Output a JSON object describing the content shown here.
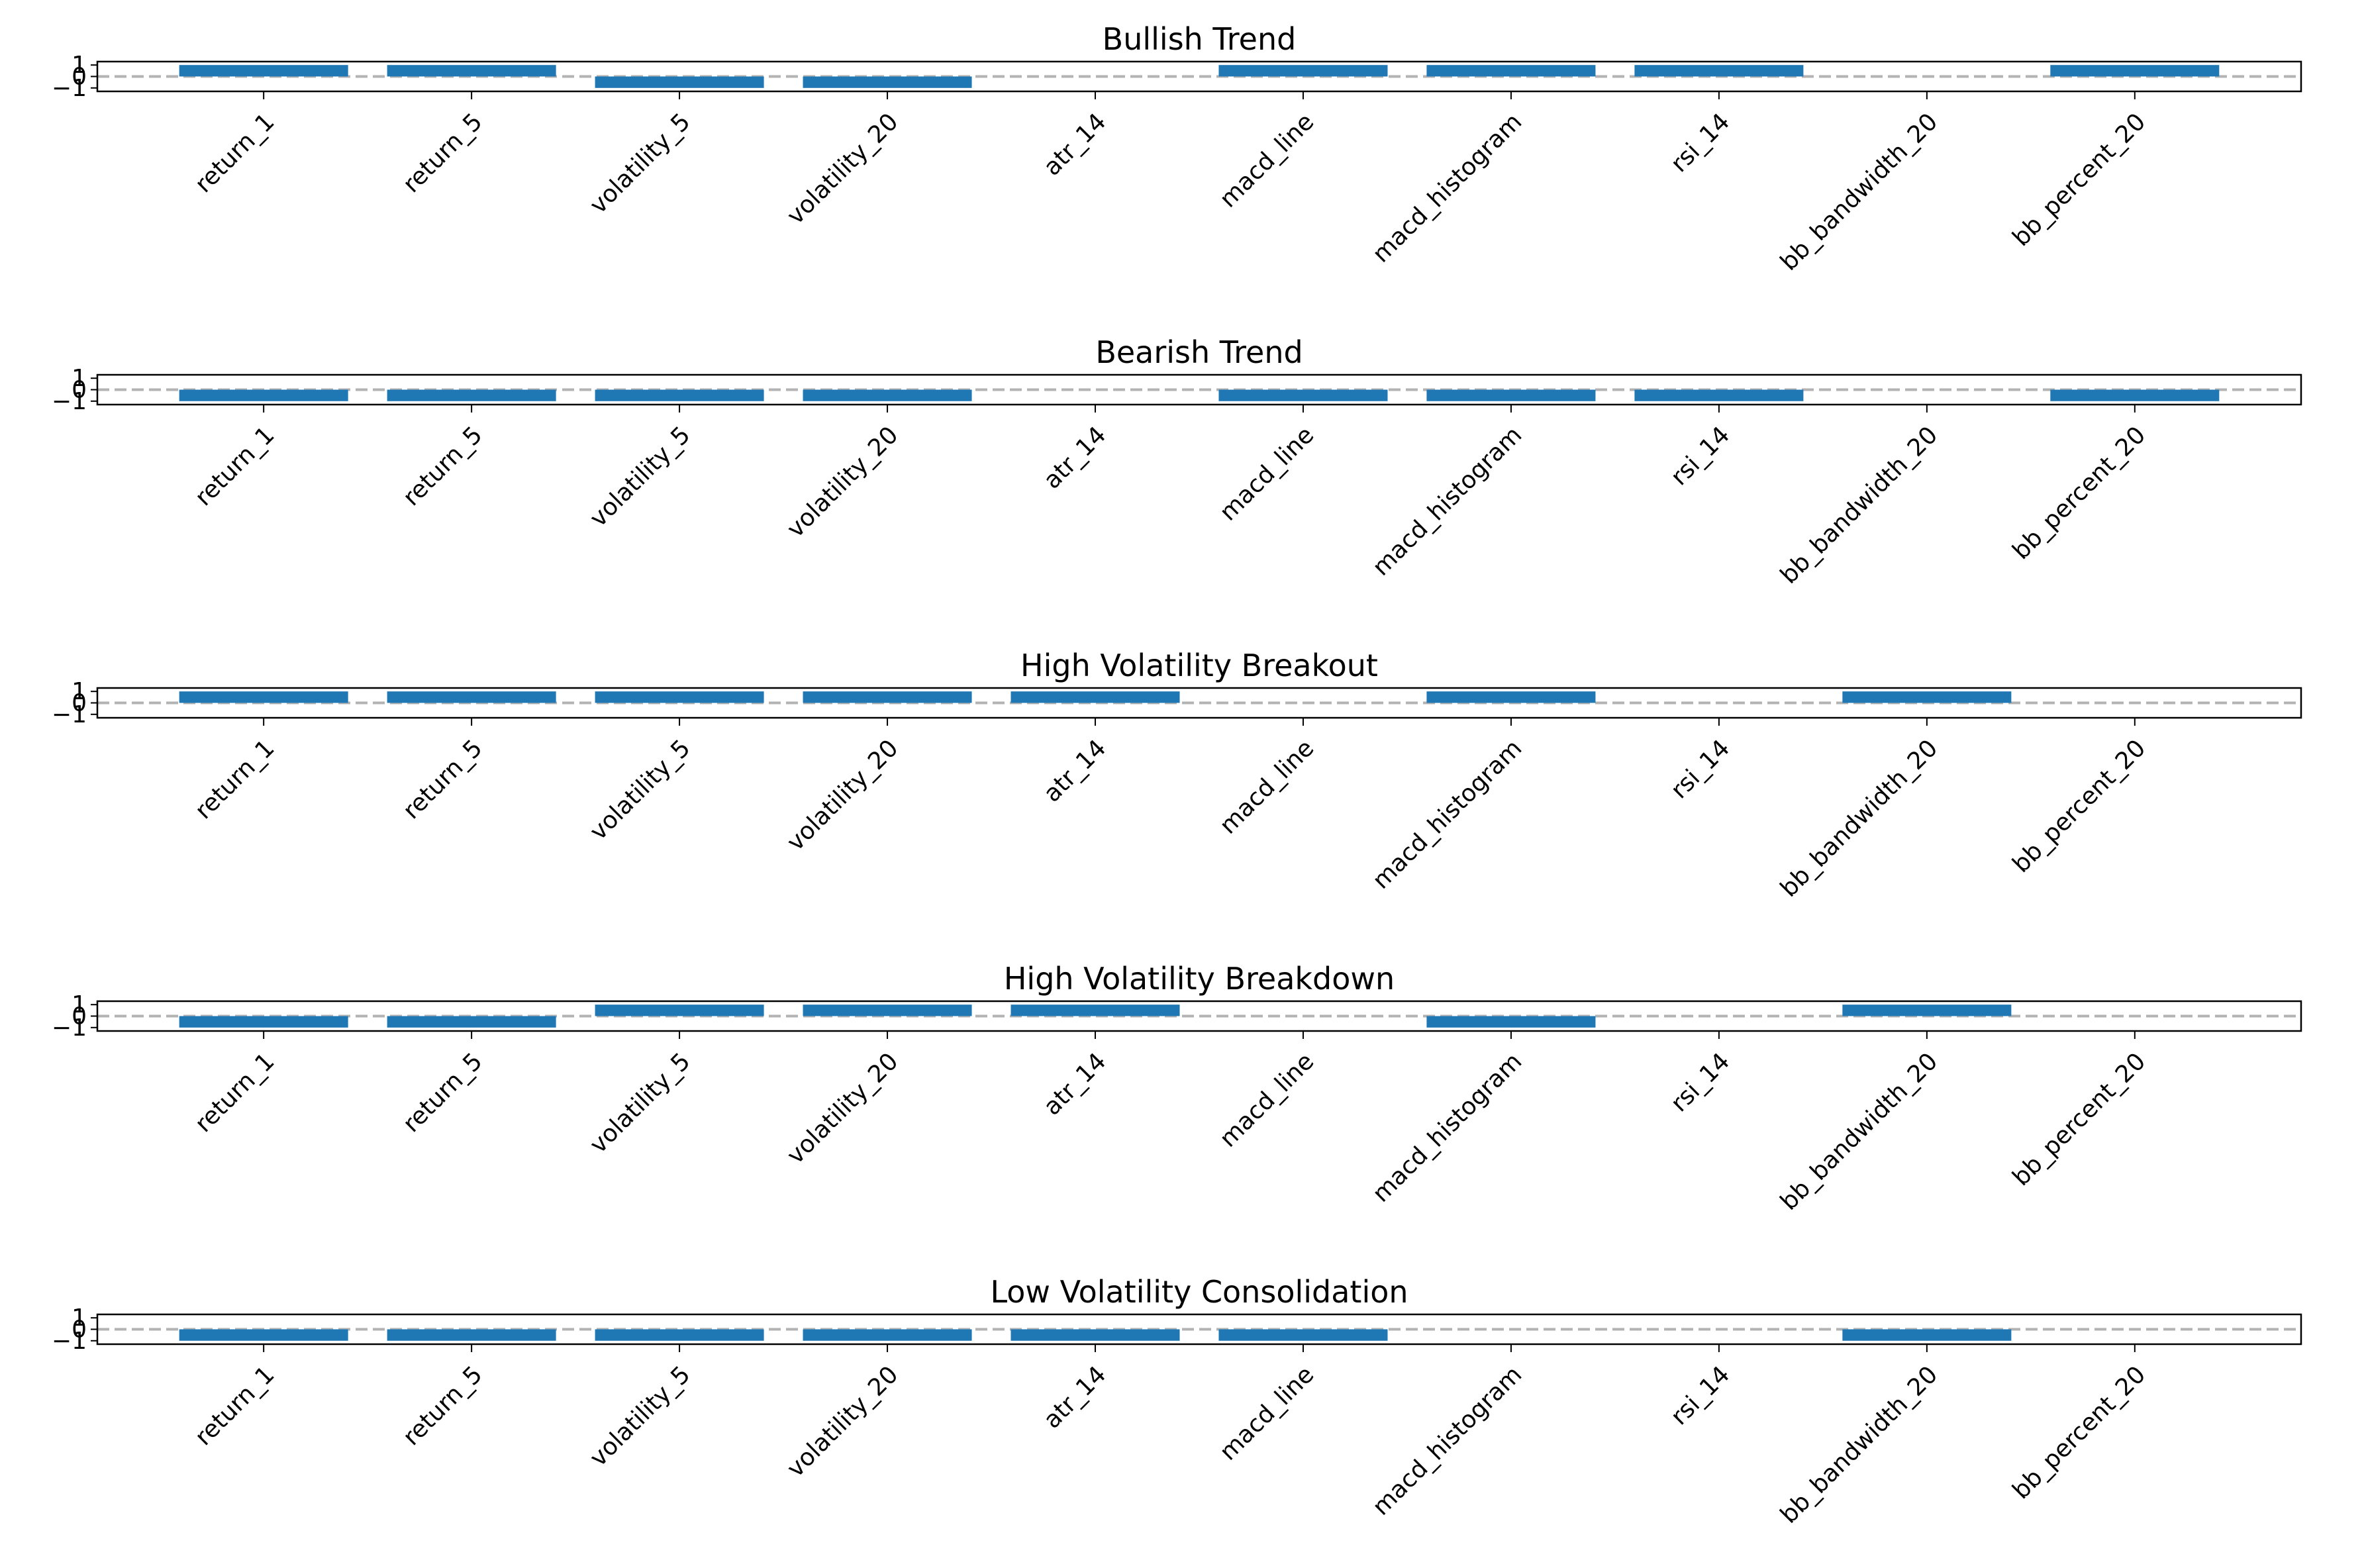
{
  "colors": {
    "bar": "#1f77b4",
    "zero_line": "#b3b3b3",
    "axes": "#000000",
    "background": "#ffffff"
  },
  "chart_data": [
    {
      "type": "bar",
      "title": "Bullish Trend",
      "categories": [
        "return_1",
        "return_5",
        "volatility_5",
        "volatility_20",
        "atr_14",
        "macd_line",
        "macd_histogram",
        "rsi_14",
        "bb_bandwidth_20",
        "bb_percent_20"
      ],
      "values": [
        1,
        1,
        -1,
        -1,
        0,
        1,
        1,
        1,
        0,
        1
      ],
      "yticks": [
        -1,
        0,
        1
      ],
      "ylim": [
        -1.3,
        1.3
      ],
      "zero_line": "dashed",
      "xlabel": "",
      "ylabel": ""
    },
    {
      "type": "bar",
      "title": "Bearish Trend",
      "categories": [
        "return_1",
        "return_5",
        "volatility_5",
        "volatility_20",
        "atr_14",
        "macd_line",
        "macd_histogram",
        "rsi_14",
        "bb_bandwidth_20",
        "bb_percent_20"
      ],
      "values": [
        -1,
        -1,
        -1,
        -1,
        0,
        -1,
        -1,
        -1,
        0,
        -1
      ],
      "yticks": [
        -1,
        0,
        1
      ],
      "ylim": [
        -1.3,
        1.3
      ],
      "zero_line": "dashed",
      "xlabel": "",
      "ylabel": ""
    },
    {
      "type": "bar",
      "title": "High Volatility Breakout",
      "categories": [
        "return_1",
        "return_5",
        "volatility_5",
        "volatility_20",
        "atr_14",
        "macd_line",
        "macd_histogram",
        "rsi_14",
        "bb_bandwidth_20",
        "bb_percent_20"
      ],
      "values": [
        1,
        1,
        1,
        1,
        1,
        0,
        1,
        0,
        1,
        0
      ],
      "yticks": [
        -1,
        0,
        1
      ],
      "ylim": [
        -1.3,
        1.3
      ],
      "zero_line": "dashed",
      "xlabel": "",
      "ylabel": ""
    },
    {
      "type": "bar",
      "title": "High Volatility Breakdown",
      "categories": [
        "return_1",
        "return_5",
        "volatility_5",
        "volatility_20",
        "atr_14",
        "macd_line",
        "macd_histogram",
        "rsi_14",
        "bb_bandwidth_20",
        "bb_percent_20"
      ],
      "values": [
        -1,
        -1,
        1,
        1,
        1,
        0,
        -1,
        0,
        1,
        0
      ],
      "yticks": [
        -1,
        0,
        1
      ],
      "ylim": [
        -1.3,
        1.3
      ],
      "zero_line": "dashed",
      "xlabel": "",
      "ylabel": ""
    },
    {
      "type": "bar",
      "title": "Low Volatility Consolidation",
      "categories": [
        "return_1",
        "return_5",
        "volatility_5",
        "volatility_20",
        "atr_14",
        "macd_line",
        "macd_histogram",
        "rsi_14",
        "bb_bandwidth_20",
        "bb_percent_20"
      ],
      "values": [
        -1,
        -1,
        -1,
        -1,
        -1,
        -1,
        0,
        0,
        -1,
        0
      ],
      "yticks": [
        -1,
        0,
        1
      ],
      "ylim": [
        -1.3,
        1.3
      ],
      "zero_line": "dashed",
      "xlabel": "",
      "ylabel": ""
    }
  ]
}
